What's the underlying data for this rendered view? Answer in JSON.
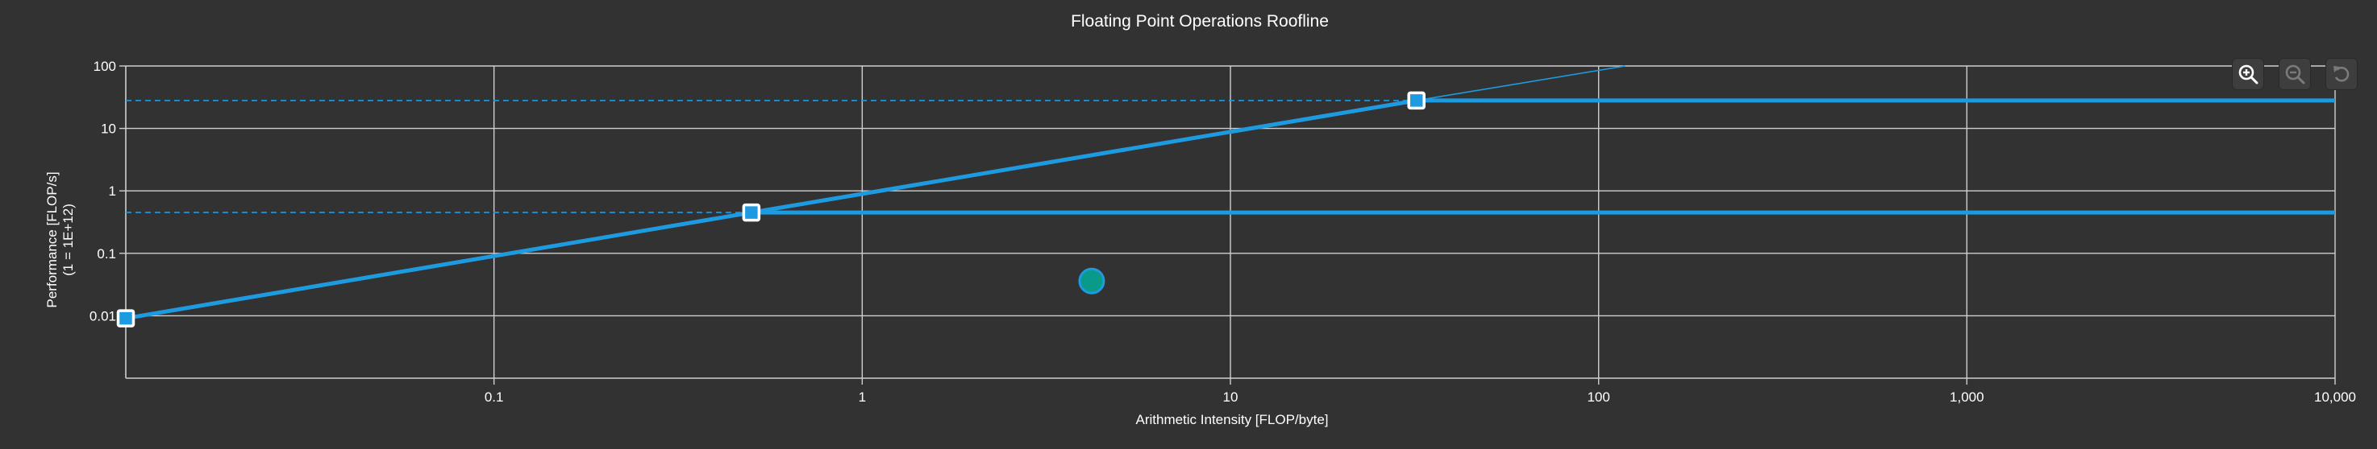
{
  "chart_data": {
    "type": "line",
    "title": "Floating Point Operations Roofline",
    "xlabel": "Arithmetic Intensity [FLOP/byte]",
    "ylabel": "Performance [FLOP/s]",
    "ylabel_sub": "(1 = 1E+12)",
    "xscale": "log",
    "yscale": "log",
    "xlim": [
      0.01,
      10000
    ],
    "ylim": [
      0.001,
      100
    ],
    "x_ticks": [
      {
        "value": 0.1,
        "label": "0.1"
      },
      {
        "value": 1,
        "label": "1"
      },
      {
        "value": 10,
        "label": "10"
      },
      {
        "value": 100,
        "label": "100"
      },
      {
        "value": 1000,
        "label": "1,000"
      },
      {
        "value": 10000,
        "label": "10,000"
      }
    ],
    "y_ticks": [
      {
        "value": 0.01,
        "label": "0.01"
      },
      {
        "value": 0.1,
        "label": "0.1"
      },
      {
        "value": 1,
        "label": "1"
      },
      {
        "value": 10,
        "label": "10"
      },
      {
        "value": 100,
        "label": "100"
      }
    ],
    "grid": true,
    "bandwidth_roof": {
      "x_start": 0.01,
      "y_start": 0.0091,
      "x_end": 0.5,
      "y_end": 0.45
    },
    "bandwidth_roof_upper": {
      "x_start": 0.5,
      "y_start": 0.45,
      "x_end": 32,
      "y_end": 28
    },
    "bandwidth_extension": {
      "x_start": 32,
      "y_start": 28,
      "x_end": 118,
      "y_end": 100
    },
    "compute_roofs": [
      {
        "y": 0.45,
        "x_knee": 0.5,
        "x_end": 10000
      },
      {
        "y": 28,
        "x_knee": 32,
        "x_end": 10000
      }
    ],
    "markers": [
      {
        "x": 0.01,
        "y": 0.0091
      },
      {
        "x": 0.5,
        "y": 0.45
      },
      {
        "x": 32,
        "y": 28
      }
    ],
    "kernel_points": [
      {
        "x": 4.2,
        "y": 0.036
      }
    ],
    "colors": {
      "background": "#323232",
      "grid": "#cfcfcf",
      "roof": "#1e9be0",
      "marker_border": "#ffffff",
      "kernel_fill": "#0a9a8a",
      "kernel_border": "#1e9be0",
      "text": "#ffffff"
    }
  },
  "toolbar": {
    "buttons": [
      {
        "name": "zoom-in-button",
        "icon": "zoom-in-icon"
      },
      {
        "name": "zoom-out-button",
        "icon": "zoom-out-icon"
      },
      {
        "name": "reset-zoom-button",
        "icon": "reset-icon"
      }
    ]
  }
}
